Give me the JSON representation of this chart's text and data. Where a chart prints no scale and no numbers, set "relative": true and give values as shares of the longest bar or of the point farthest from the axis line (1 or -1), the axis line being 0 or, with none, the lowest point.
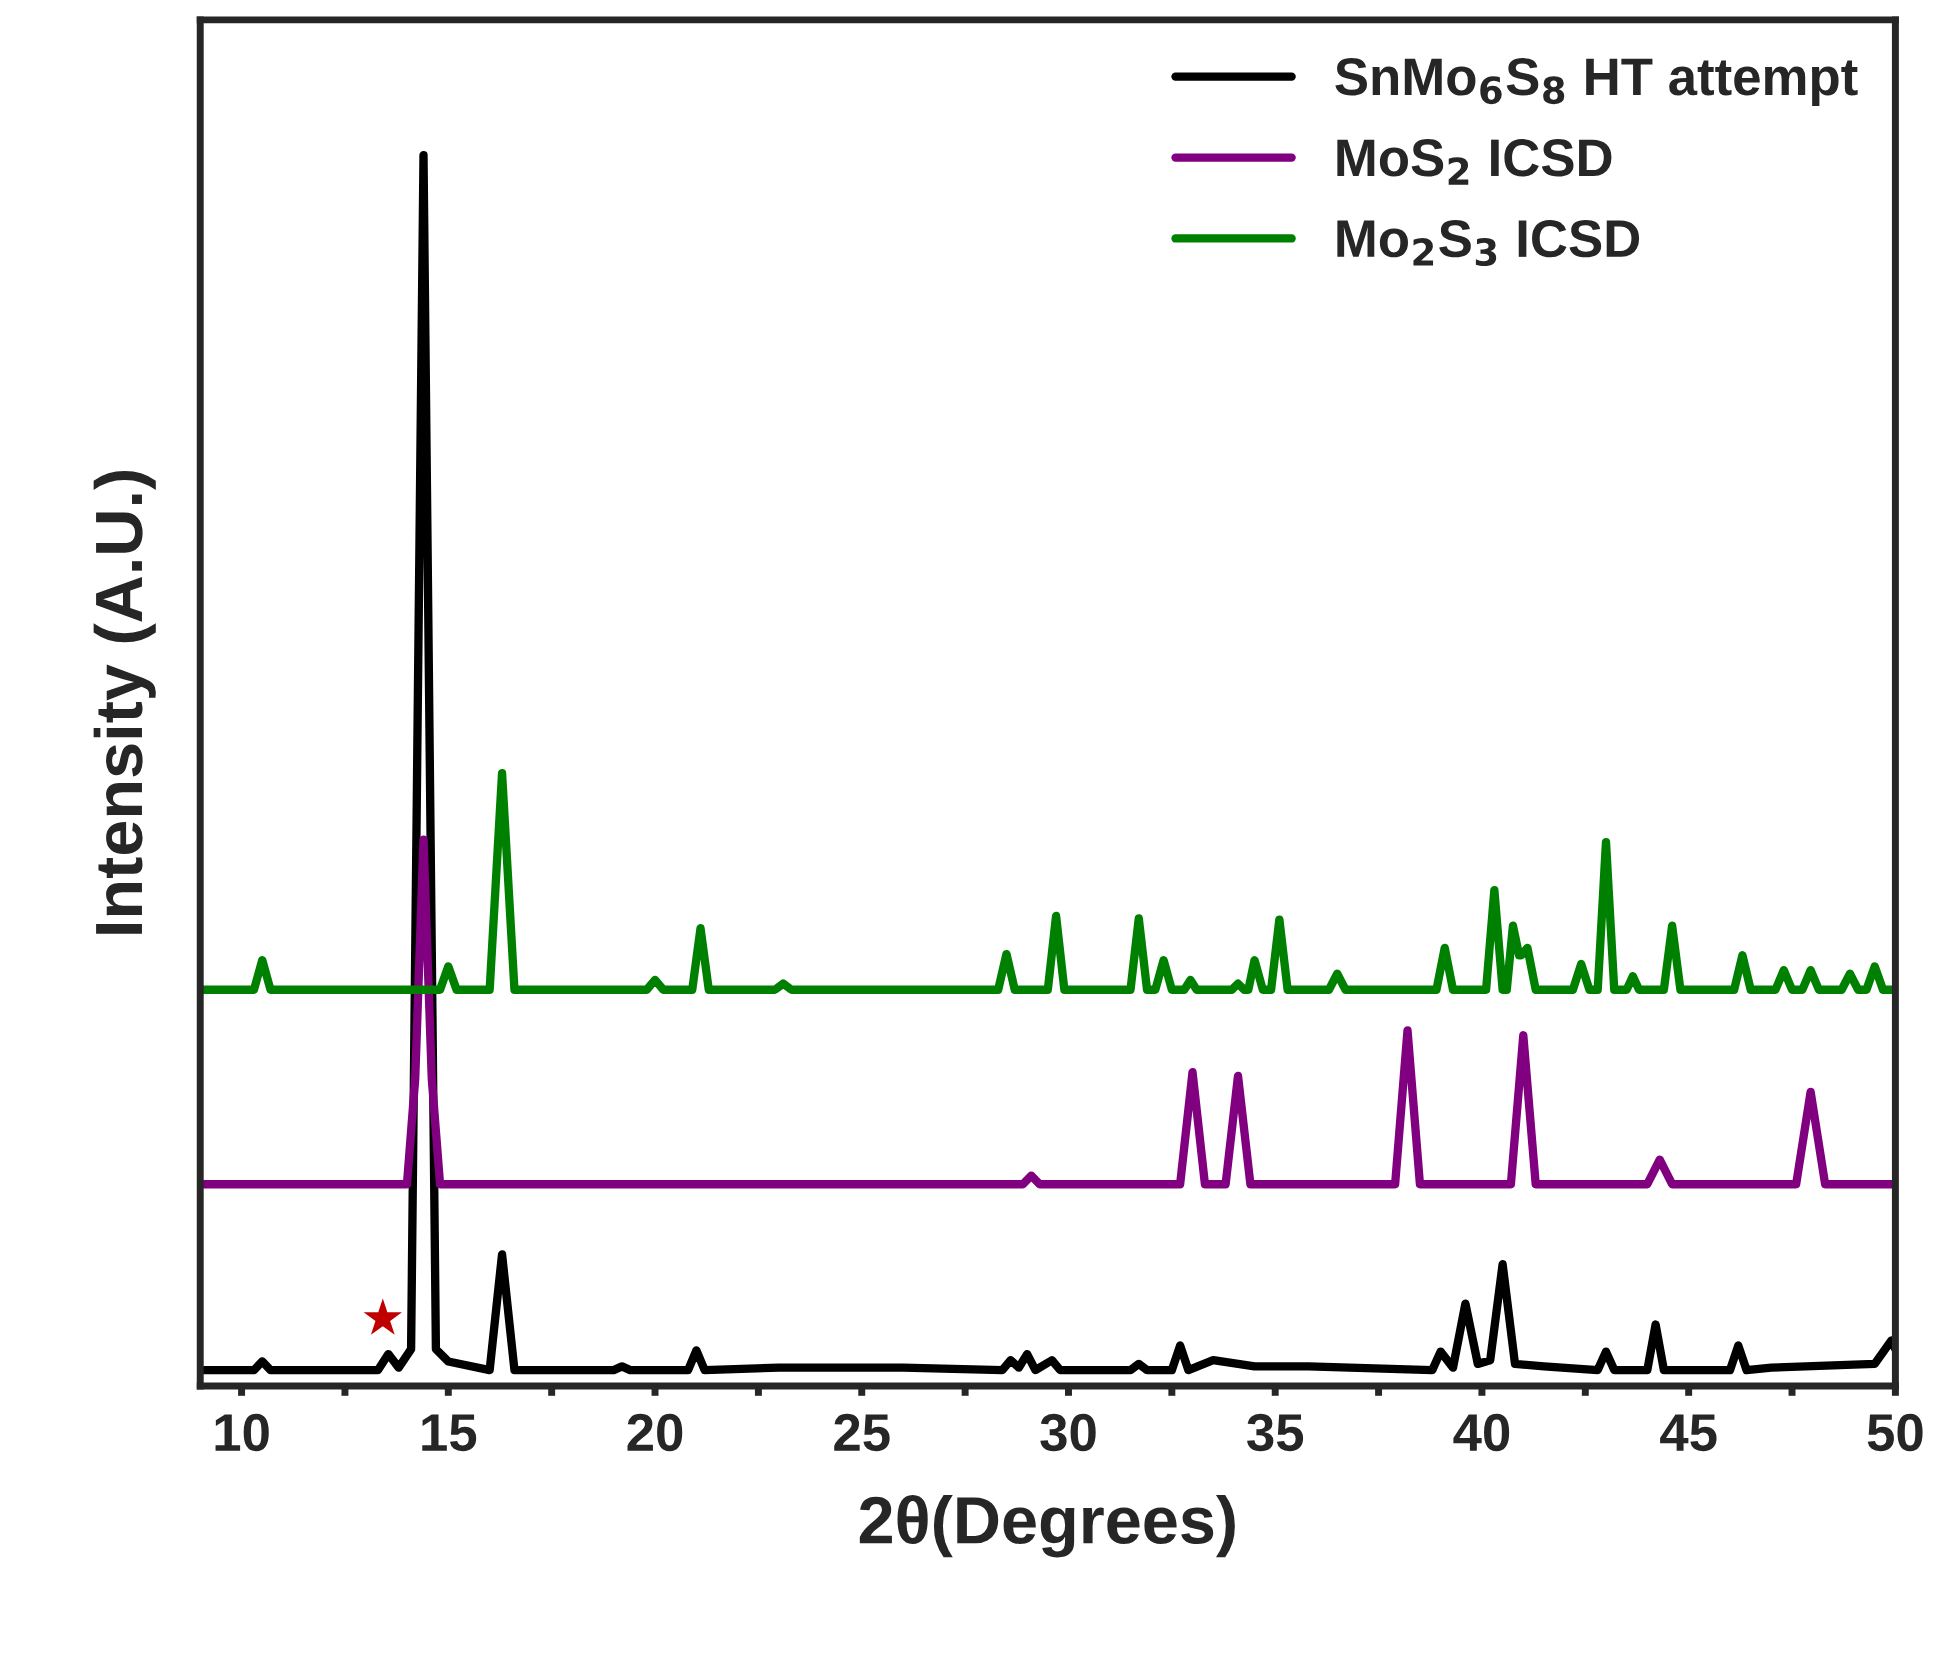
{
  "chart_data": {
    "type": "line",
    "relative": true,
    "xlabel": "2θ(Degrees)",
    "ylabel": "Intensity (A.U.)",
    "xlim": [
      9,
      50
    ],
    "xticks": [
      10,
      {
        "value": 12.5,
        "label": null
      },
      15,
      {
        "value": 17.5,
        "label": null
      },
      20,
      {
        "value": 22.5,
        "label": null
      },
      25,
      {
        "value": 27.5,
        "label": null
      },
      30,
      {
        "value": 32.5,
        "label": null
      },
      35,
      {
        "value": 37.5,
        "label": null
      },
      40,
      {
        "value": 42.5,
        "label": null
      },
      45,
      {
        "value": 47.5,
        "label": null
      },
      50
    ],
    "tick_labels": "x",
    "grid": false,
    "legend": "top right",
    "marker": "none",
    "line_style": "solid",
    "annotations": [
      {
        "text": "★",
        "x": 13.55,
        "y": 0.026
      }
    ],
    "series": [
      {
        "name": "SnMo$_{6}$S$_{8}$ HT attempt",
        "color": "#000000",
        "x": [
          9.0,
          10.3,
          10.5,
          10.7,
          13.3,
          13.55,
          13.8,
          14.1,
          14.4,
          14.7,
          15.0,
          16.0,
          16.3,
          16.6,
          19.0,
          19.2,
          19.4,
          20.8,
          21.0,
          21.2,
          23.0,
          26.0,
          28.4,
          28.6,
          28.8,
          29.0,
          29.2,
          29.6,
          29.8,
          31.5,
          31.7,
          31.9,
          32.5,
          32.7,
          32.9,
          33.5,
          34.5,
          35.2,
          35.8,
          38.8,
          39.0,
          39.3,
          39.6,
          39.9,
          40.2,
          40.5,
          40.8,
          41.5,
          42.8,
          43.0,
          43.2,
          44.0,
          44.2,
          44.4,
          46.0,
          46.2,
          46.4,
          47.0,
          49.5,
          49.9,
          50.0
        ],
        "values": [
          0.013,
          0.013,
          0.02,
          0.013,
          0.013,
          0.026,
          0.015,
          0.03,
          1.0,
          0.03,
          0.02,
          0.013,
          0.107,
          0.013,
          0.013,
          0.016,
          0.013,
          0.013,
          0.029,
          0.013,
          0.015,
          0.015,
          0.013,
          0.021,
          0.015,
          0.026,
          0.013,
          0.021,
          0.013,
          0.013,
          0.018,
          0.013,
          0.013,
          0.033,
          0.013,
          0.021,
          0.016,
          0.016,
          0.016,
          0.013,
          0.028,
          0.015,
          0.067,
          0.018,
          0.021,
          0.099,
          0.018,
          0.016,
          0.013,
          0.028,
          0.013,
          0.013,
          0.05,
          0.013,
          0.013,
          0.033,
          0.013,
          0.015,
          0.018,
          0.037,
          0.03
        ]
      },
      {
        "name": "MoS$_{2}$ ICSD",
        "color": "#800080",
        "x": [
          9.0,
          14.0,
          14.2,
          14.4,
          14.6,
          14.8,
          28.9,
          29.1,
          29.3,
          32.7,
          33.0,
          33.3,
          33.8,
          34.1,
          34.4,
          37.9,
          38.2,
          38.5,
          40.7,
          41.0,
          41.3,
          44.0,
          44.3,
          44.6,
          47.6,
          47.95,
          48.3,
          50.0
        ],
        "values": [
          0.164,
          0.164,
          0.25,
          0.444,
          0.25,
          0.164,
          0.164,
          0.171,
          0.164,
          0.164,
          0.255,
          0.164,
          0.164,
          0.252,
          0.164,
          0.164,
          0.289,
          0.164,
          0.164,
          0.285,
          0.164,
          0.164,
          0.184,
          0.164,
          0.164,
          0.239,
          0.164,
          0.164
        ]
      },
      {
        "name": "Mo$_{2}$S$_{3}$ ICSD",
        "color": "#008000",
        "x": [
          9.0,
          10.3,
          10.5,
          10.7,
          14.8,
          15.0,
          15.2,
          16.0,
          16.3,
          16.6,
          19.8,
          20.0,
          20.2,
          20.9,
          21.1,
          21.3,
          22.9,
          23.1,
          23.3,
          28.3,
          28.5,
          28.7,
          29.5,
          29.7,
          29.9,
          31.5,
          31.7,
          31.9,
          32.1,
          32.3,
          32.5,
          32.8,
          32.95,
          33.1,
          33.95,
          34.1,
          34.25,
          34.35,
          34.5,
          34.7,
          34.9,
          35.1,
          35.3,
          36.3,
          36.5,
          36.7,
          38.9,
          39.1,
          39.3,
          40.1,
          40.3,
          40.5,
          40.6,
          40.75,
          40.9,
          40.95,
          41.1,
          41.3,
          42.2,
          42.4,
          42.6,
          42.8,
          43.0,
          43.2,
          43.5,
          43.65,
          43.8,
          44.4,
          44.6,
          44.8,
          46.1,
          46.3,
          46.5,
          47.1,
          47.3,
          47.5,
          47.75,
          47.95,
          48.15,
          48.7,
          48.9,
          49.1,
          49.3,
          49.5,
          49.7,
          50.0
        ],
        "values": [
          0.322,
          0.322,
          0.346,
          0.322,
          0.322,
          0.341,
          0.322,
          0.322,
          0.498,
          0.322,
          0.322,
          0.33,
          0.322,
          0.322,
          0.372,
          0.322,
          0.322,
          0.327,
          0.322,
          0.322,
          0.351,
          0.322,
          0.322,
          0.382,
          0.322,
          0.322,
          0.38,
          0.322,
          0.322,
          0.346,
          0.322,
          0.322,
          0.33,
          0.322,
          0.322,
          0.327,
          0.322,
          0.322,
          0.346,
          0.322,
          0.322,
          0.379,
          0.322,
          0.322,
          0.335,
          0.322,
          0.322,
          0.356,
          0.322,
          0.322,
          0.403,
          0.322,
          0.322,
          0.374,
          0.35,
          0.35,
          0.356,
          0.322,
          0.322,
          0.343,
          0.322,
          0.322,
          0.442,
          0.322,
          0.322,
          0.333,
          0.322,
          0.322,
          0.374,
          0.322,
          0.322,
          0.35,
          0.322,
          0.322,
          0.338,
          0.322,
          0.322,
          0.338,
          0.322,
          0.322,
          0.335,
          0.322,
          0.322,
          0.341,
          0.322,
          0.322
        ]
      }
    ]
  }
}
